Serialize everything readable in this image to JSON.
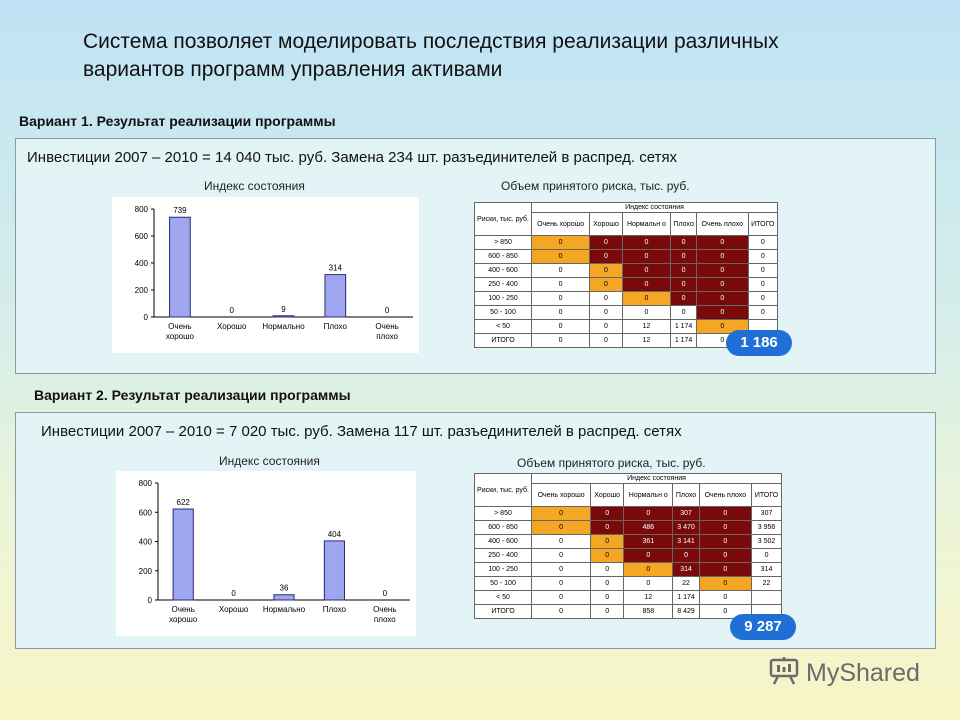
{
  "title": "Система позволяет моделировать последствия реализации различных вариантов программ управления активами",
  "variants": [
    {
      "heading": "Вариант 1. Результат реализации программы",
      "investment": "Инвестиции 2007 – 2010 = 14 040 тыс. руб.  Замена 234 шт. разъединителей в распред. сетях",
      "index_caption": "Индекс состояния",
      "risk_caption": "Объем принятого риска, тыс. руб.",
      "total_badge": "1 186",
      "chart_data": {
        "type": "bar",
        "categories": [
          "Очень хорошо",
          "Хорошо",
          "Нормально",
          "Плохо",
          "Очень плохо"
        ],
        "values": [
          739,
          0,
          9,
          314,
          0
        ],
        "value_labels": [
          "739",
          "0",
          "9",
          "314",
          "0"
        ],
        "ylim": [
          0,
          800
        ],
        "yticks": [
          "0",
          "200",
          "400",
          "600",
          "800"
        ],
        "color": "#9fa6f0"
      },
      "matrix": {
        "top_header": "Индекс состояния",
        "corner": "Риски, тыс. руб.",
        "columns": [
          "Очень хорошо",
          "Хорошо",
          "Нормальн о",
          "Плохо",
          "Очень плохо",
          "ИТОГО"
        ],
        "rows": [
          {
            "label": "> 850",
            "cells": [
              "0",
              "0",
              "0",
              "0",
              "0",
              "0"
            ],
            "colors": [
              "o",
              "r",
              "r",
              "r",
              "r",
              "w"
            ]
          },
          {
            "label": "600 - 850",
            "cells": [
              "0",
              "0",
              "0",
              "0",
              "0",
              "0"
            ],
            "colors": [
              "o",
              "r",
              "r",
              "r",
              "r",
              "w"
            ]
          },
          {
            "label": "400 - 600",
            "cells": [
              "0",
              "0",
              "0",
              "0",
              "0",
              "0"
            ],
            "colors": [
              "w",
              "o",
              "r",
              "r",
              "r",
              "w"
            ]
          },
          {
            "label": "250 - 400",
            "cells": [
              "0",
              "0",
              "0",
              "0",
              "0",
              "0"
            ],
            "colors": [
              "w",
              "o",
              "r",
              "r",
              "r",
              "w"
            ]
          },
          {
            "label": "100 - 250",
            "cells": [
              "0",
              "0",
              "0",
              "0",
              "0",
              "0"
            ],
            "colors": [
              "w",
              "w",
              "o",
              "r",
              "r",
              "w"
            ]
          },
          {
            "label": "50 - 100",
            "cells": [
              "0",
              "0",
              "0",
              "0",
              "0",
              "0"
            ],
            "colors": [
              "w",
              "w",
              "w",
              "w",
              "r",
              "w"
            ]
          },
          {
            "label": "< 50",
            "cells": [
              "0",
              "0",
              "12",
              "1 174",
              "0",
              ""
            ],
            "colors": [
              "w",
              "w",
              "w",
              "w",
              "o",
              "w"
            ]
          },
          {
            "label": "ИТОГО",
            "cells": [
              "0",
              "0",
              "12",
              "1 174",
              "0",
              ""
            ],
            "colors": [
              "w",
              "w",
              "w",
              "w",
              "w",
              "w"
            ]
          }
        ]
      }
    },
    {
      "heading": "Вариант 2. Результат реализации программы",
      "investment": "Инвестиции 2007 – 2010 = 7 020 тыс. руб.  Замена 117 шт. разъединителей в распред. сетях",
      "index_caption": "Индекс состояния",
      "risk_caption": "Объем принятого риска, тыс. руб.",
      "total_badge": "9 287",
      "chart_data": {
        "type": "bar",
        "categories": [
          "Очень хорошо",
          "Хорошо",
          "Нормально",
          "Плохо",
          "Очень плохо"
        ],
        "values": [
          622,
          0,
          36,
          404,
          0
        ],
        "value_labels": [
          "622",
          "0",
          "36",
          "404",
          "0"
        ],
        "ylim": [
          0,
          800
        ],
        "yticks": [
          "0",
          "200",
          "400",
          "600",
          "800"
        ],
        "color": "#9fa6f0"
      },
      "matrix": {
        "top_header": "Индекс состояния",
        "corner": "Риски, тыс. руб.",
        "columns": [
          "Очень хорошо",
          "Хорошо",
          "Нормальн о",
          "Плохо",
          "Очень плохо",
          "ИТОГО"
        ],
        "rows": [
          {
            "label": "> 850",
            "cells": [
              "0",
              "0",
              "0",
              "307",
              "0",
              "307"
            ],
            "colors": [
              "o",
              "r",
              "r",
              "r",
              "r",
              "w"
            ]
          },
          {
            "label": "600 - 850",
            "cells": [
              "0",
              "0",
              "486",
              "3 470",
              "0",
              "3 956"
            ],
            "colors": [
              "o",
              "r",
              "r",
              "r",
              "r",
              "w"
            ]
          },
          {
            "label": "400 - 600",
            "cells": [
              "0",
              "0",
              "361",
              "3 141",
              "0",
              "3 502"
            ],
            "colors": [
              "w",
              "o",
              "r",
              "r",
              "r",
              "w"
            ]
          },
          {
            "label": "250 - 400",
            "cells": [
              "0",
              "0",
              "0",
              "0",
              "0",
              "0"
            ],
            "colors": [
              "w",
              "o",
              "r",
              "r",
              "r",
              "w"
            ]
          },
          {
            "label": "100 - 250",
            "cells": [
              "0",
              "0",
              "0",
              "314",
              "0",
              "314"
            ],
            "colors": [
              "w",
              "w",
              "o",
              "r",
              "r",
              "w"
            ]
          },
          {
            "label": "50 - 100",
            "cells": [
              "0",
              "0",
              "0",
              "22",
              "0",
              "22"
            ],
            "colors": [
              "w",
              "w",
              "w",
              "w",
              "o",
              "w"
            ]
          },
          {
            "label": "< 50",
            "cells": [
              "0",
              "0",
              "12",
              "1 174",
              "0",
              ""
            ],
            "colors": [
              "w",
              "w",
              "w",
              "w",
              "w",
              "w"
            ]
          },
          {
            "label": "ИТОГО",
            "cells": [
              "0",
              "0",
              "858",
              "8 429",
              "0",
              ""
            ],
            "colors": [
              "w",
              "w",
              "w",
              "w",
              "w",
              "w"
            ]
          }
        ]
      }
    }
  ],
  "watermark": {
    "text": "MyShared",
    "icon": "presentation-board-icon",
    "color": "#6b6b6b"
  }
}
